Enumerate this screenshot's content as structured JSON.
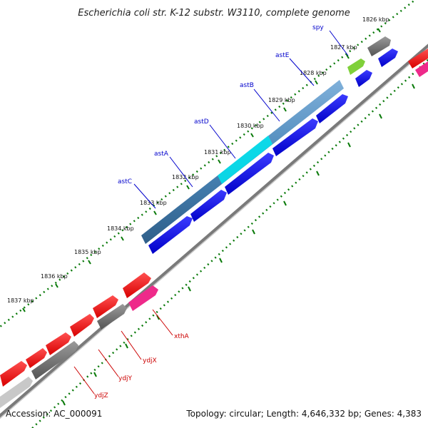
{
  "title": "Escherichia coli str. K-12 substr. W3110, complete genome",
  "footer": {
    "accession": "Accession: AC_000091",
    "topology": "Topology: circular; Length: 4,646,332 bp; Genes: 4,383"
  },
  "colors": {
    "backbone": "#8c8c8c",
    "tick": "#0a7a0a",
    "forward_cds": "#0a0aee",
    "reverse_cds": "#ee1010",
    "gene_label_forward": "#0000cc",
    "gene_label_reverse": "#cc0000",
    "operon_bar": "#4a86b8",
    "highlight": "#00e5ee",
    "gray_feature": "#6a6a6a",
    "pink_feature": "#ee2a8a"
  },
  "tick_labels": [
    "1826 kbp",
    "1827 kbp",
    "1828 kbp",
    "1829 kbp",
    "1830 kbp",
    "1831 kbp",
    "1832 kbp",
    "1833 kbp",
    "1834 kbp",
    "1835 kbp",
    "1836 kbp",
    "1837 kbp"
  ],
  "genes_forward": [
    {
      "name": "spy"
    },
    {
      "name": "astE"
    },
    {
      "name": "astB"
    },
    {
      "name": "astD"
    },
    {
      "name": "astA"
    },
    {
      "name": "astC"
    }
  ],
  "genes_reverse": [
    {
      "name": "xthA"
    },
    {
      "name": "ydjX"
    },
    {
      "name": "ydjY"
    },
    {
      "name": "ydjZ"
    }
  ]
}
